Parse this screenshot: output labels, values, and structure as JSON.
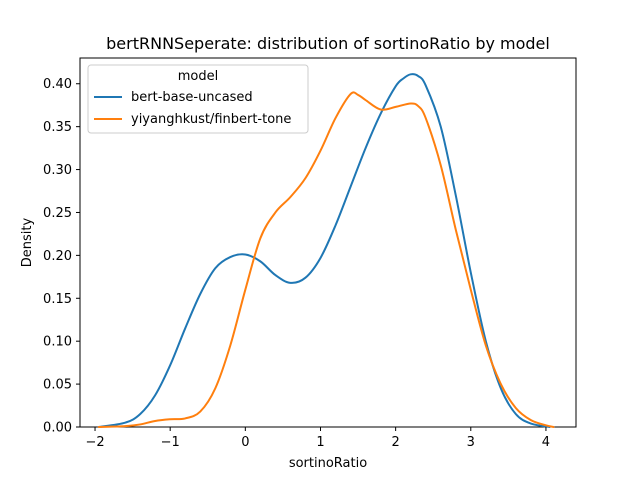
{
  "chart_data": {
    "type": "line",
    "title": "bertRNNSeperate: distribution of sortinoRatio by model",
    "xlabel": "sortinoRatio",
    "ylabel": "Density",
    "xlim": [
      -2.2,
      4.4
    ],
    "ylim": [
      0.0,
      0.43
    ],
    "xticks": [
      -2,
      -1,
      0,
      1,
      2,
      3,
      4
    ],
    "xtick_labels": [
      "−2",
      "−1",
      "0",
      "1",
      "2",
      "3",
      "4"
    ],
    "yticks": [
      0.0,
      0.05,
      0.1,
      0.15,
      0.2,
      0.25,
      0.3,
      0.35,
      0.4
    ],
    "ytick_labels": [
      "0.00",
      "0.05",
      "0.10",
      "0.15",
      "0.20",
      "0.25",
      "0.30",
      "0.35",
      "0.40"
    ],
    "grid": false,
    "legend": {
      "title": "model",
      "placement": "top-left"
    },
    "series": [
      {
        "name": "bert-base-uncased",
        "color": "#1f77b4",
        "points": [
          [
            -1.95,
            0.0
          ],
          [
            -1.6,
            0.005
          ],
          [
            -1.4,
            0.015
          ],
          [
            -1.2,
            0.037
          ],
          [
            -1.0,
            0.072
          ],
          [
            -0.8,
            0.115
          ],
          [
            -0.6,
            0.155
          ],
          [
            -0.4,
            0.185
          ],
          [
            -0.2,
            0.198
          ],
          [
            0.0,
            0.201
          ],
          [
            0.2,
            0.193
          ],
          [
            0.4,
            0.177
          ],
          [
            0.6,
            0.168
          ],
          [
            0.8,
            0.174
          ],
          [
            1.0,
            0.197
          ],
          [
            1.2,
            0.235
          ],
          [
            1.4,
            0.28
          ],
          [
            1.6,
            0.325
          ],
          [
            1.8,
            0.365
          ],
          [
            2.0,
            0.397
          ],
          [
            2.1,
            0.406
          ],
          [
            2.2,
            0.411
          ],
          [
            2.3,
            0.409
          ],
          [
            2.4,
            0.398
          ],
          [
            2.6,
            0.35
          ],
          [
            2.8,
            0.27
          ],
          [
            3.0,
            0.18
          ],
          [
            3.2,
            0.1
          ],
          [
            3.4,
            0.045
          ],
          [
            3.6,
            0.015
          ],
          [
            3.8,
            0.004
          ],
          [
            4.05,
            0.0
          ]
        ]
      },
      {
        "name": "yiyanghkust/finbert-tone",
        "color": "#ff7f0e",
        "points": [
          [
            -1.95,
            0.0
          ],
          [
            -1.6,
            0.001
          ],
          [
            -1.4,
            0.003
          ],
          [
            -1.2,
            0.007
          ],
          [
            -1.0,
            0.009
          ],
          [
            -0.8,
            0.01
          ],
          [
            -0.6,
            0.018
          ],
          [
            -0.4,
            0.045
          ],
          [
            -0.2,
            0.095
          ],
          [
            0.0,
            0.16
          ],
          [
            0.2,
            0.22
          ],
          [
            0.4,
            0.25
          ],
          [
            0.6,
            0.268
          ],
          [
            0.8,
            0.29
          ],
          [
            1.0,
            0.322
          ],
          [
            1.2,
            0.36
          ],
          [
            1.4,
            0.388
          ],
          [
            1.5,
            0.387
          ],
          [
            1.6,
            0.381
          ],
          [
            1.8,
            0.37
          ],
          [
            2.0,
            0.373
          ],
          [
            2.2,
            0.377
          ],
          [
            2.3,
            0.374
          ],
          [
            2.4,
            0.36
          ],
          [
            2.6,
            0.305
          ],
          [
            2.8,
            0.23
          ],
          [
            3.0,
            0.16
          ],
          [
            3.2,
            0.095
          ],
          [
            3.4,
            0.05
          ],
          [
            3.6,
            0.022
          ],
          [
            3.8,
            0.008
          ],
          [
            4.0,
            0.002
          ],
          [
            4.1,
            0.0
          ]
        ]
      }
    ]
  }
}
